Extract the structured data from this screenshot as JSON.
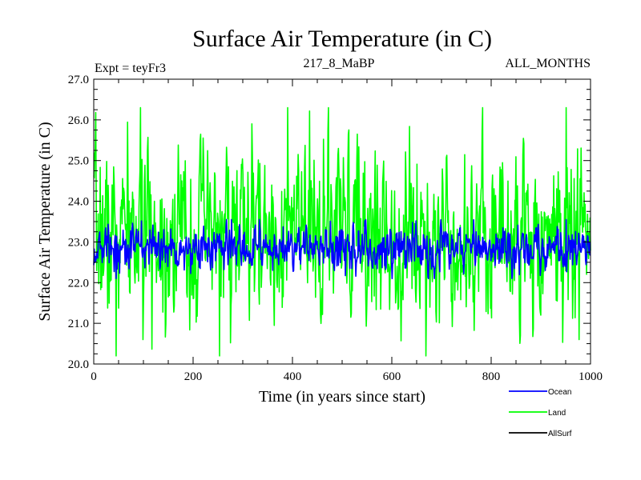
{
  "chart_data": {
    "type": "line",
    "title": "Surface Air Temperature (in C)",
    "subtitle_left": "Expt = teyFr3",
    "subtitle_center": "217_8_MaBP",
    "subtitle_right": "ALL_MONTHS",
    "xlabel": "Time (in years since start)",
    "ylabel": "Surface Air Temperature (in C)",
    "xlim": [
      0,
      1000
    ],
    "ylim": [
      20.0,
      27.0
    ],
    "xticks": [
      0,
      200,
      400,
      600,
      800,
      1000
    ],
    "xtick_labels": [
      "0",
      "200",
      "400",
      "600",
      "800",
      "1000"
    ],
    "yticks": [
      20,
      21,
      22,
      23,
      24,
      25,
      26,
      27
    ],
    "ytick_labels": [
      "20.0",
      "21.0",
      "22.0",
      "23.0",
      "24.0",
      "25.0",
      "26.0",
      "27.0"
    ],
    "grid": false,
    "legend_position": "bottom-right",
    "series": [
      {
        "name": "Land",
        "color": "#00ff00",
        "mean": 23.2,
        "typical_min": 21.2,
        "typical_max": 25.4,
        "observed_min": 20.2,
        "observed_max": 26.3,
        "n_points": 1000
      },
      {
        "name": "Ocean",
        "color": "#0000ff",
        "mean": 22.85,
        "typical_min": 22.3,
        "typical_max": 23.4,
        "observed_min": 22.1,
        "observed_max": 23.55,
        "n_points": 1000
      },
      {
        "name": "AllSurf",
        "color": "#000000",
        "values": []
      }
    ],
    "legend": [
      {
        "label": "Ocean",
        "color": "#0000ff"
      },
      {
        "label": "Land",
        "color": "#00ff00"
      },
      {
        "label": "AllSurf",
        "color": "#000000"
      }
    ]
  }
}
